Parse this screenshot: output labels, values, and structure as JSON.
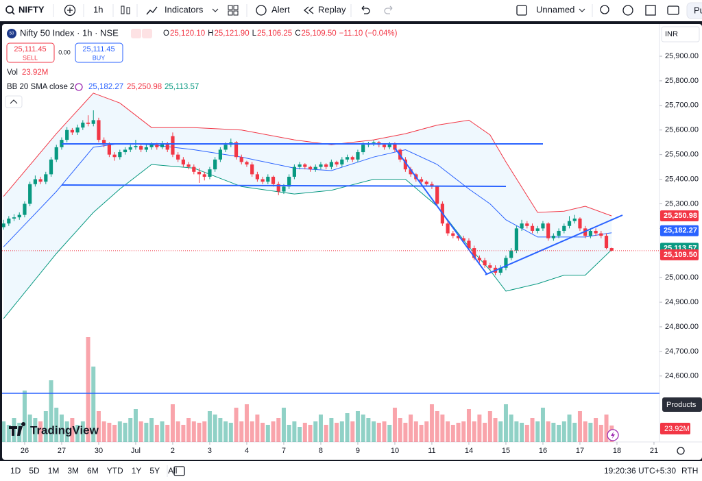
{
  "toolbar": {
    "symbol": "NIFTY",
    "interval": "1h",
    "indicators": "Indicators",
    "alert": "Alert",
    "replay": "Replay",
    "layout_name": "Unnamed",
    "publish": "Pu"
  },
  "legend": {
    "badge": "50",
    "title": "Nifty 50 Index · 1h · NSE",
    "ohlc": [
      {
        "key": "O",
        "value": "25,120.10"
      },
      {
        "key": "H",
        "value": "25,121.90"
      },
      {
        "key": "L",
        "value": "25,106.25"
      },
      {
        "key": "C",
        "value": "25,109.50"
      }
    ],
    "change": "−11.10 (−0.04%)"
  },
  "trade": {
    "sell_price": "25,111.45",
    "sell": "SELL",
    "spread": "0.00",
    "buy_price": "25,111.45",
    "buy": "BUY"
  },
  "volume_legend": {
    "label": "Vol",
    "value": "23.92M"
  },
  "bb_legend": {
    "label": "BB 20 SMA close 2"
  },
  "currency": "INR",
  "products": "Products",
  "watermark": "TradingView",
  "chart_data": {
    "type": "candlestick",
    "up_color": "#089981",
    "down_color": "#f23645",
    "ylim": [
      24332,
      26031
    ],
    "yticks": [
      {
        "value": 25900,
        "label": "25,900.00"
      },
      {
        "value": 25800,
        "label": "25,800.00"
      },
      {
        "value": 25700,
        "label": "25,700.00"
      },
      {
        "value": 25600,
        "label": "25,600.00"
      },
      {
        "value": 25500,
        "label": "25,500.00"
      },
      {
        "value": 25400,
        "label": "25,400.00"
      },
      {
        "value": 25300,
        "label": "25,300.00"
      },
      {
        "value": 25200,
        "label": "25,200.00"
      },
      {
        "value": 25100,
        "label": "25,100.00"
      },
      {
        "value": 25000,
        "label": "25,000.00"
      },
      {
        "value": 24900,
        "label": "24,900.00"
      },
      {
        "value": 24800,
        "label": "24,800.00"
      },
      {
        "value": 24700,
        "label": "24,700.00"
      },
      {
        "value": 24600,
        "label": "24,600.00"
      }
    ],
    "xticks": [
      {
        "value": 4,
        "label": "26"
      },
      {
        "value": 11,
        "label": "27"
      },
      {
        "value": 18,
        "label": "30"
      },
      {
        "value": 25,
        "label": "Jul"
      },
      {
        "value": 32,
        "label": "2"
      },
      {
        "value": 39,
        "label": "3"
      },
      {
        "value": 46,
        "label": "4"
      },
      {
        "value": 53,
        "label": "7"
      },
      {
        "value": 60,
        "label": "8"
      },
      {
        "value": 67,
        "label": "9"
      },
      {
        "value": 74,
        "label": "10"
      },
      {
        "value": 81,
        "label": "11"
      },
      {
        "value": 88,
        "label": "14"
      },
      {
        "value": 95,
        "label": "15"
      },
      {
        "value": 102,
        "label": "16"
      },
      {
        "value": 109,
        "label": "17"
      },
      {
        "value": 116,
        "label": "18"
      },
      {
        "value": 123,
        "label": "21"
      }
    ],
    "ohlc": [
      [
        25205,
        25235,
        25195,
        25220
      ],
      [
        25220,
        25250,
        25210,
        25240
      ],
      [
        25240,
        25258,
        25230,
        25245
      ],
      [
        25245,
        25265,
        25235,
        25255
      ],
      [
        25255,
        25310,
        25245,
        25300
      ],
      [
        25300,
        25390,
        25290,
        25380
      ],
      [
        25380,
        25415,
        25370,
        25400
      ],
      [
        25400,
        25410,
        25380,
        25390
      ],
      [
        25390,
        25430,
        25380,
        25420
      ],
      [
        25420,
        25490,
        25410,
        25480
      ],
      [
        25480,
        25540,
        25470,
        25530
      ],
      [
        25530,
        25570,
        25520,
        25560
      ],
      [
        25560,
        25612,
        25550,
        25600
      ],
      [
        25600,
        25608,
        25580,
        25590
      ],
      [
        25590,
        25622,
        25580,
        25610
      ],
      [
        25610,
        25640,
        25600,
        25630
      ],
      [
        25630,
        25660,
        25615,
        25625
      ],
      [
        25625,
        25680,
        25615,
        25640
      ],
      [
        25640,
        25650,
        25550,
        25560
      ],
      [
        25560,
        25570,
        25530,
        25540
      ],
      [
        25540,
        25550,
        25490,
        25500
      ],
      [
        25500,
        25510,
        25475,
        25490
      ],
      [
        25490,
        25520,
        25480,
        25510
      ],
      [
        25510,
        25530,
        25500,
        25520
      ],
      [
        25520,
        25540,
        25510,
        25530
      ],
      [
        25530,
        25560,
        25520,
        25535
      ],
      [
        25535,
        25545,
        25510,
        25520
      ],
      [
        25520,
        25540,
        25510,
        25530
      ],
      [
        25530,
        25550,
        25520,
        25540
      ],
      [
        25540,
        25548,
        25520,
        25530
      ],
      [
        25530,
        25555,
        25522,
        25545
      ],
      [
        25545,
        25552,
        25510,
        25520
      ],
      [
        25575,
        25590,
        25490,
        25500
      ],
      [
        25500,
        25510,
        25470,
        25480
      ],
      [
        25480,
        25490,
        25450,
        25460
      ],
      [
        25460,
        25470,
        25440,
        25450
      ],
      [
        25450,
        25460,
        25420,
        25430
      ],
      [
        25430,
        25445,
        25385,
        25420
      ],
      [
        25420,
        25430,
        25395,
        25410
      ],
      [
        25410,
        25450,
        25400,
        25440
      ],
      [
        25440,
        25490,
        25430,
        25480
      ],
      [
        25480,
        25530,
        25470,
        25520
      ],
      [
        25520,
        25550,
        25510,
        25540
      ],
      [
        25540,
        25565,
        25530,
        25550
      ],
      [
        25550,
        25555,
        25480,
        25490
      ],
      [
        25490,
        25500,
        25460,
        25470
      ],
      [
        25470,
        25475,
        25450,
        25460
      ],
      [
        25460,
        25470,
        25410,
        25420
      ],
      [
        25420,
        25430,
        25390,
        25400
      ],
      [
        25400,
        25410,
        25380,
        25390
      ],
      [
        25390,
        25420,
        25380,
        25410
      ],
      [
        25410,
        25415,
        25370,
        25380
      ],
      [
        25380,
        25390,
        25335,
        25350
      ],
      [
        25350,
        25380,
        25340,
        25370
      ],
      [
        25370,
        25420,
        25360,
        25410
      ],
      [
        25410,
        25460,
        25400,
        25450
      ],
      [
        25450,
        25470,
        25440,
        25460
      ],
      [
        25460,
        25465,
        25440,
        25450
      ],
      [
        25450,
        25455,
        25430,
        25440
      ],
      [
        25440,
        25460,
        25430,
        25450
      ],
      [
        25450,
        25470,
        25440,
        25460
      ],
      [
        25460,
        25465,
        25440,
        25450
      ],
      [
        25450,
        25480,
        25440,
        25470
      ],
      [
        25470,
        25475,
        25450,
        25460
      ],
      [
        25460,
        25490,
        25450,
        25480
      ],
      [
        25480,
        25500,
        25470,
        25490
      ],
      [
        25490,
        25495,
        25470,
        25480
      ],
      [
        25480,
        25520,
        25470,
        25510
      ],
      [
        25510,
        25550,
        25500,
        25540
      ],
      [
        25540,
        25552,
        25530,
        25545
      ],
      [
        25545,
        25558,
        25535,
        25550
      ],
      [
        25550,
        25555,
        25530,
        25540
      ],
      [
        25540,
        25545,
        25520,
        25530
      ],
      [
        25530,
        25552,
        25522,
        25545
      ],
      [
        25545,
        25550,
        25510,
        25520
      ],
      [
        25520,
        25525,
        25470,
        25480
      ],
      [
        25480,
        25490,
        25430,
        25440
      ],
      [
        25440,
        25450,
        25410,
        25420
      ],
      [
        25420,
        25425,
        25390,
        25400
      ],
      [
        25400,
        25410,
        25380,
        25390
      ],
      [
        25390,
        25395,
        25370,
        25380
      ],
      [
        25380,
        25390,
        25360,
        25370
      ],
      [
        25370,
        25375,
        25290,
        25300
      ],
      [
        25300,
        25310,
        25210,
        25220
      ],
      [
        25220,
        25230,
        25170,
        25180
      ],
      [
        25180,
        25190,
        25160,
        25170
      ],
      [
        25170,
        25180,
        25150,
        25160
      ],
      [
        25160,
        25170,
        25140,
        25150
      ],
      [
        25150,
        25160,
        25110,
        25120
      ],
      [
        25120,
        25130,
        25070,
        25080
      ],
      [
        25080,
        25090,
        25060,
        25070
      ],
      [
        25070,
        25080,
        25040,
        25050
      ],
      [
        25050,
        25060,
        25030,
        25040
      ],
      [
        25040,
        25050,
        25010,
        25020
      ],
      [
        25020,
        25050,
        25010,
        25040
      ],
      [
        25040,
        25090,
        25030,
        25080
      ],
      [
        25080,
        25120,
        25070,
        25110
      ],
      [
        25110,
        25210,
        25100,
        25200
      ],
      [
        25200,
        25235,
        25190,
        25220
      ],
      [
        25220,
        25230,
        25200,
        25210
      ],
      [
        25210,
        25220,
        25180,
        25190
      ],
      [
        25190,
        25210,
        25180,
        25200
      ],
      [
        25200,
        25230,
        25190,
        25220
      ],
      [
        25220,
        25225,
        25150,
        25160
      ],
      [
        25160,
        25180,
        25150,
        25170
      ],
      [
        25170,
        25200,
        25160,
        25190
      ],
      [
        25190,
        25220,
        25180,
        25210
      ],
      [
        25210,
        25250,
        25200,
        25230
      ],
      [
        25230,
        25255,
        25220,
        25240
      ],
      [
        25240,
        25245,
        25190,
        25200
      ],
      [
        25200,
        25210,
        25160,
        25170
      ],
      [
        25170,
        25200,
        25160,
        25190
      ],
      [
        25190,
        25200,
        25170,
        25180
      ],
      [
        25180,
        25190,
        25160,
        25170
      ],
      [
        25170,
        25180,
        25115,
        25120.1
      ],
      [
        25120.1,
        25121.9,
        25106.25,
        25109.5
      ]
    ],
    "volume": {
      "axis": "y2",
      "values": [
        30,
        25,
        35,
        28,
        75,
        40,
        35,
        30,
        45,
        90,
        50,
        40,
        30,
        35,
        25,
        30,
        153,
        110,
        45,
        30,
        28,
        25,
        30,
        28,
        35,
        48,
        30,
        28,
        35,
        25,
        30,
        25,
        55,
        30,
        25,
        35,
        30,
        28,
        30,
        45,
        40,
        35,
        30,
        28,
        50,
        30,
        55,
        30,
        40,
        28,
        25,
        30,
        35,
        50,
        25,
        30,
        22,
        28,
        25,
        30,
        40,
        25,
        35,
        28,
        30,
        42,
        30,
        45,
        40,
        35,
        30,
        28,
        30,
        25,
        50,
        35,
        28,
        40,
        30,
        25,
        30,
        55,
        45,
        40,
        30,
        25,
        28,
        30,
        48,
        30,
        40,
        28,
        45,
        35,
        30,
        55,
        40,
        30,
        28,
        25,
        35,
        30,
        50,
        30,
        28,
        25,
        30,
        40,
        28,
        45,
        30,
        28,
        35,
        25,
        40,
        23.92
      ]
    },
    "y2lim": [
      0,
      200
    ],
    "bands": {
      "x": [
        0,
        10,
        17,
        22,
        28,
        36,
        45,
        55,
        62,
        70,
        76,
        82,
        88,
        92,
        95,
        101,
        106,
        110,
        115
      ],
      "upper": [
        25330,
        25585,
        25750,
        25710,
        25610,
        25610,
        25600,
        25560,
        25540,
        25560,
        25585,
        25620,
        25640,
        25580,
        25470,
        25265,
        25270,
        25290,
        25250.98
      ],
      "mid": [
        25125,
        25350,
        25530,
        25545,
        25540,
        25520,
        25490,
        25445,
        25435,
        25490,
        25520,
        25460,
        25360,
        25300,
        25235,
        25165,
        25165,
        25165,
        25182.27
      ],
      "lower": [
        24833,
        25098,
        25265,
        25360,
        25460,
        25445,
        25370,
        25340,
        25355,
        25400,
        25400,
        25290,
        25125,
        25030,
        24945,
        24975,
        25010,
        25010,
        25113.57
      ],
      "upper_color": "#f23645",
      "mid_color": "#2962ff",
      "lower_color": "#089981"
    },
    "last_labels": {
      "upper": "25,250.98",
      "mid": "25,182.27",
      "lower": "25,113.57",
      "close": "25,109.50"
    }
  },
  "bottom_bar": {
    "ranges": [
      "1D",
      "5D",
      "1M",
      "3M",
      "6M",
      "YTD",
      "1Y",
      "5Y",
      "All"
    ],
    "time": "19:20:36 UTC+5:30",
    "session": "RTH"
  }
}
